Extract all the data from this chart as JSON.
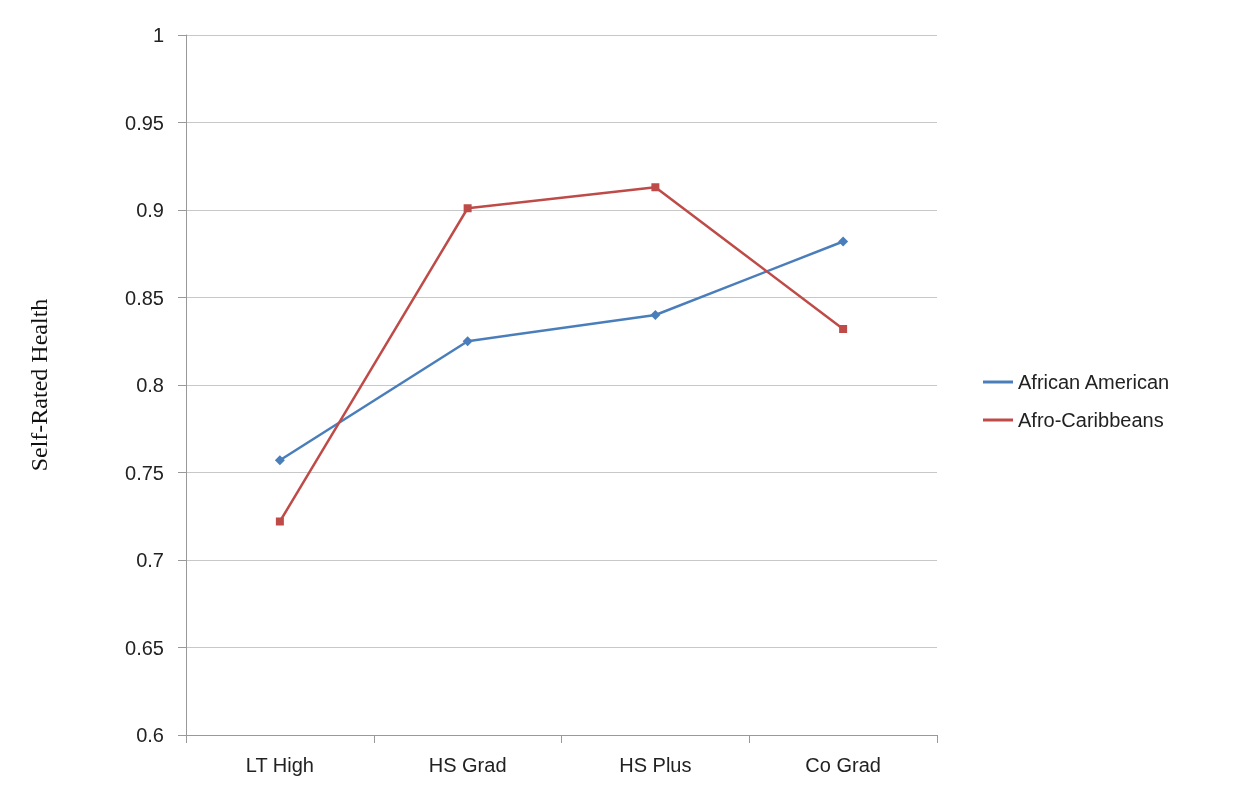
{
  "chart_data": {
    "type": "line",
    "ylabel": "Self-Rated Health",
    "categories": [
      "LT High",
      "HS Grad",
      "HS Plus",
      "Co Grad"
    ],
    "series": [
      {
        "name": "African American",
        "color": "#4a7ebb",
        "marker": "diamond",
        "values": [
          0.757,
          0.825,
          0.84,
          0.882
        ]
      },
      {
        "name": "Afro-Caribbeans",
        "color": "#be4b48",
        "marker": "square",
        "values": [
          0.722,
          0.901,
          0.913,
          0.832
        ]
      }
    ],
    "ylim": [
      0.6,
      1
    ],
    "yticks": [
      0.6,
      0.65,
      0.7,
      0.75,
      0.8,
      0.85,
      0.9,
      0.95,
      1
    ],
    "grid": "y",
    "legend": "right"
  }
}
